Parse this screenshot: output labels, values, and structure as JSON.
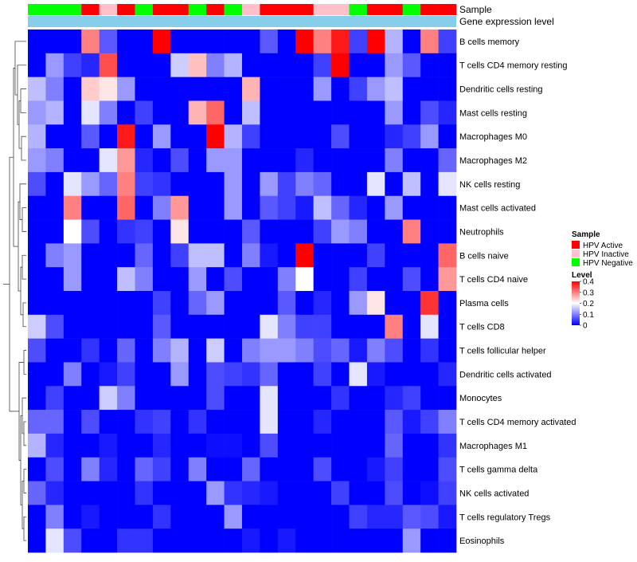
{
  "chart_data": {
    "type": "heatmap",
    "title": "",
    "column_annotations": {
      "sample_label": "Sample",
      "expression_label": "Gene expression level",
      "samples": [
        "HPV Negative",
        "HPV Negative",
        "HPV Negative",
        "HPV Active",
        "HPV Inactive",
        "HPV Active",
        "HPV Negative",
        "HPV Active",
        "HPV Active",
        "HPV Negative",
        "HPV Active",
        "HPV Negative",
        "HPV Inactive",
        "HPV Active",
        "HPV Active",
        "HPV Active",
        "HPV Inactive",
        "HPV Inactive",
        "HPV Negative",
        "HPV Active",
        "HPV Active",
        "HPV Negative",
        "HPV Active",
        "HPV Active"
      ]
    },
    "rows": [
      {
        "name": "B cells memory",
        "values": [
          0.0,
          0.0,
          0.0,
          0.3,
          0.07,
          0.0,
          0.0,
          0.4,
          0.0,
          0.0,
          0.0,
          0.0,
          0.0,
          0.07,
          0.0,
          0.4,
          0.3,
          0.38,
          0.05,
          0.4,
          0.14,
          0.0,
          0.3,
          0.05
        ]
      },
      {
        "name": "T cells CD4 memory resting",
        "values": [
          0.0,
          0.12,
          0.05,
          0.03,
          0.34,
          0.0,
          0.0,
          0.0,
          0.16,
          0.25,
          0.1,
          0.14,
          0.0,
          0.0,
          0.0,
          0.0,
          0.05,
          0.4,
          0.0,
          0.0,
          0.12,
          0.07,
          0.0,
          0.0
        ]
      },
      {
        "name": "Dendritic cells resting",
        "values": [
          0.15,
          0.1,
          0.0,
          0.24,
          0.22,
          0.12,
          0.0,
          0.0,
          0.0,
          0.0,
          0.0,
          0.0,
          0.26,
          0.0,
          0.0,
          0.0,
          0.12,
          0.0,
          0.05,
          0.12,
          0.15,
          0.0,
          0.0,
          0.0
        ]
      },
      {
        "name": "Mast cells resting",
        "values": [
          0.12,
          0.14,
          0.0,
          0.18,
          0.1,
          0.0,
          0.05,
          0.0,
          0.0,
          0.26,
          0.32,
          0.0,
          0.15,
          0.0,
          0.0,
          0.0,
          0.0,
          0.0,
          0.0,
          0.0,
          0.12,
          0.0,
          0.06,
          0.03
        ]
      },
      {
        "name": "Macrophages M0",
        "values": [
          0.14,
          0.0,
          0.0,
          0.07,
          0.0,
          0.38,
          0.0,
          0.12,
          0.0,
          0.0,
          0.4,
          0.14,
          0.05,
          0.0,
          0.0,
          0.0,
          0.0,
          0.06,
          0.0,
          0.0,
          0.03,
          0.05,
          0.12,
          0.0
        ]
      },
      {
        "name": "Macrophages M2",
        "values": [
          0.12,
          0.1,
          0.0,
          0.0,
          0.18,
          0.28,
          0.03,
          0.0,
          0.06,
          0.0,
          0.12,
          0.12,
          0.0,
          0.0,
          0.0,
          0.03,
          0.0,
          0.0,
          0.0,
          0.0,
          0.1,
          0.0,
          0.0,
          0.08
        ]
      },
      {
        "name": "NK cells resting",
        "values": [
          0.06,
          0.0,
          0.18,
          0.12,
          0.08,
          0.3,
          0.05,
          0.04,
          0.0,
          0.0,
          0.0,
          0.12,
          0.0,
          0.12,
          0.05,
          0.1,
          0.08,
          0.0,
          0.0,
          0.18,
          0.0,
          0.15,
          0.0,
          0.18
        ]
      },
      {
        "name": "Mast cells activated",
        "values": [
          0.0,
          0.0,
          0.3,
          0.0,
          0.0,
          0.32,
          0.0,
          0.1,
          0.28,
          0.0,
          0.0,
          0.12,
          0.0,
          0.07,
          0.05,
          0.02,
          0.15,
          0.08,
          0.03,
          0.0,
          0.12,
          0.0,
          0.0,
          0.0
        ]
      },
      {
        "name": "Neutrophils",
        "values": [
          0.0,
          0.0,
          0.2,
          0.06,
          0.0,
          0.04,
          0.05,
          0.0,
          0.22,
          0.0,
          0.0,
          0.0,
          0.07,
          0.0,
          0.0,
          0.0,
          0.05,
          0.12,
          0.1,
          0.0,
          0.0,
          0.3,
          0.0,
          0.0
        ]
      },
      {
        "name": "B cells naive",
        "values": [
          0.0,
          0.1,
          0.12,
          0.0,
          0.0,
          0.0,
          0.08,
          0.0,
          0.05,
          0.15,
          0.15,
          0.0,
          0.1,
          0.02,
          0.0,
          0.4,
          0.0,
          0.0,
          0.0,
          0.05,
          0.0,
          0.0,
          0.0,
          0.32
        ]
      },
      {
        "name": "T cells CD4 naive",
        "values": [
          0.0,
          0.0,
          0.12,
          0.0,
          0.0,
          0.15,
          0.1,
          0.0,
          0.0,
          0.12,
          0.0,
          0.06,
          0.0,
          0.0,
          0.1,
          0.2,
          0.0,
          0.0,
          0.05,
          0.0,
          0.0,
          0.06,
          0.0,
          0.28
        ]
      },
      {
        "name": "Plasma cells",
        "values": [
          0.0,
          0.0,
          0.0,
          0.0,
          0.0,
          0.0,
          0.0,
          0.05,
          0.0,
          0.08,
          0.12,
          0.0,
          0.0,
          0.0,
          0.07,
          0.0,
          0.03,
          0.0,
          0.12,
          0.22,
          0.0,
          0.0,
          0.36,
          0.0
        ]
      },
      {
        "name": "T cells CD8",
        "values": [
          0.16,
          0.06,
          0.0,
          0.0,
          0.0,
          0.0,
          0.0,
          0.07,
          0.0,
          0.0,
          0.0,
          0.0,
          0.0,
          0.18,
          0.1,
          0.05,
          0.05,
          0.0,
          0.0,
          0.0,
          0.3,
          0.0,
          0.18,
          0.0
        ]
      },
      {
        "name": "T cells follicular helper",
        "values": [
          0.06,
          0.0,
          0.0,
          0.04,
          0.0,
          0.08,
          0.0,
          0.1,
          0.14,
          0.0,
          0.16,
          0.0,
          0.1,
          0.12,
          0.12,
          0.1,
          0.06,
          0.08,
          0.02,
          0.1,
          0.06,
          0.0,
          0.04,
          0.0
        ]
      },
      {
        "name": "Dendritic cells activated",
        "values": [
          0.0,
          0.0,
          0.1,
          0.0,
          0.02,
          0.05,
          0.0,
          0.0,
          0.12,
          0.0,
          0.06,
          0.05,
          0.04,
          0.08,
          0.0,
          0.0,
          0.05,
          0.0,
          0.18,
          0.02,
          0.0,
          0.0,
          0.0,
          0.03
        ]
      },
      {
        "name": "Monocytes",
        "values": [
          0.0,
          0.05,
          0.0,
          0.0,
          0.16,
          0.1,
          0.0,
          0.0,
          0.0,
          0.0,
          0.06,
          0.0,
          0.0,
          0.18,
          0.0,
          0.0,
          0.0,
          0.04,
          0.0,
          0.0,
          0.03,
          0.05,
          0.0,
          0.0
        ]
      },
      {
        "name": "T cells CD4 memory activated",
        "values": [
          0.08,
          0.08,
          0.0,
          0.06,
          0.0,
          0.0,
          0.04,
          0.05,
          0.0,
          0.04,
          0.0,
          0.0,
          0.0,
          0.18,
          0.0,
          0.0,
          0.03,
          0.0,
          0.0,
          0.0,
          0.07,
          0.02,
          0.05,
          0.1
        ]
      },
      {
        "name": "Macrophages M1",
        "values": [
          0.14,
          0.03,
          0.0,
          0.0,
          0.02,
          0.0,
          0.0,
          0.03,
          0.0,
          0.0,
          0.01,
          0.01,
          0.0,
          0.06,
          0.0,
          0.0,
          0.0,
          0.0,
          0.0,
          0.0,
          0.08,
          0.0,
          0.0,
          0.04
        ]
      },
      {
        "name": "T cells gamma delta",
        "values": [
          0.0,
          0.06,
          0.0,
          0.1,
          0.03,
          0.0,
          0.08,
          0.05,
          0.0,
          0.1,
          0.0,
          0.0,
          0.08,
          0.0,
          0.0,
          0.0,
          0.06,
          0.0,
          0.0,
          0.02,
          0.05,
          0.0,
          0.0,
          0.06
        ]
      },
      {
        "name": "NK cells activated",
        "values": [
          0.08,
          0.03,
          0.0,
          0.0,
          0.0,
          0.0,
          0.04,
          0.0,
          0.0,
          0.0,
          0.12,
          0.04,
          0.03,
          0.02,
          0.0,
          0.0,
          0.0,
          0.05,
          0.0,
          0.0,
          0.06,
          0.0,
          0.01,
          0.05
        ]
      },
      {
        "name": "T cells regulatory  Tregs",
        "values": [
          0.0,
          0.1,
          0.0,
          0.02,
          0.0,
          0.0,
          0.0,
          0.04,
          0.0,
          0.0,
          0.0,
          0.12,
          0.0,
          0.0,
          0.0,
          0.0,
          0.0,
          0.0,
          0.05,
          0.03,
          0.03,
          0.07,
          0.06,
          0.02
        ]
      },
      {
        "name": "Eosinophils",
        "values": [
          0.0,
          0.18,
          0.06,
          0.0,
          0.0,
          0.04,
          0.04,
          0.0,
          0.0,
          0.0,
          0.0,
          0.0,
          0.02,
          0.0,
          0.02,
          0.0,
          0.0,
          0.0,
          0.0,
          0.0,
          0.0,
          0.12,
          0.0,
          0.0
        ]
      }
    ],
    "color_scale": {
      "min": 0,
      "max": 0.4,
      "low_color": "#0000ff",
      "mid_color": "#ffffff",
      "high_color": "#ff0000",
      "mid_value": 0.2
    },
    "legend": {
      "position": "right",
      "sample_title": "Sample",
      "sample_entries": [
        {
          "label": "HPV Active",
          "color": "#ff0000"
        },
        {
          "label": "HPV Inactive",
          "color": "#ffc0cb"
        },
        {
          "label": "HPV Negative",
          "color": "#00ff00"
        }
      ],
      "level_title": "Level",
      "level_ticks": [
        "0.4",
        "0.3",
        "0.2",
        "0.1",
        "0"
      ],
      "level_tick_values": [
        0.4,
        0.3,
        0.2,
        0.1,
        0
      ]
    },
    "expression_bar_color": "#87ceeb",
    "row_dendrogram": true
  }
}
